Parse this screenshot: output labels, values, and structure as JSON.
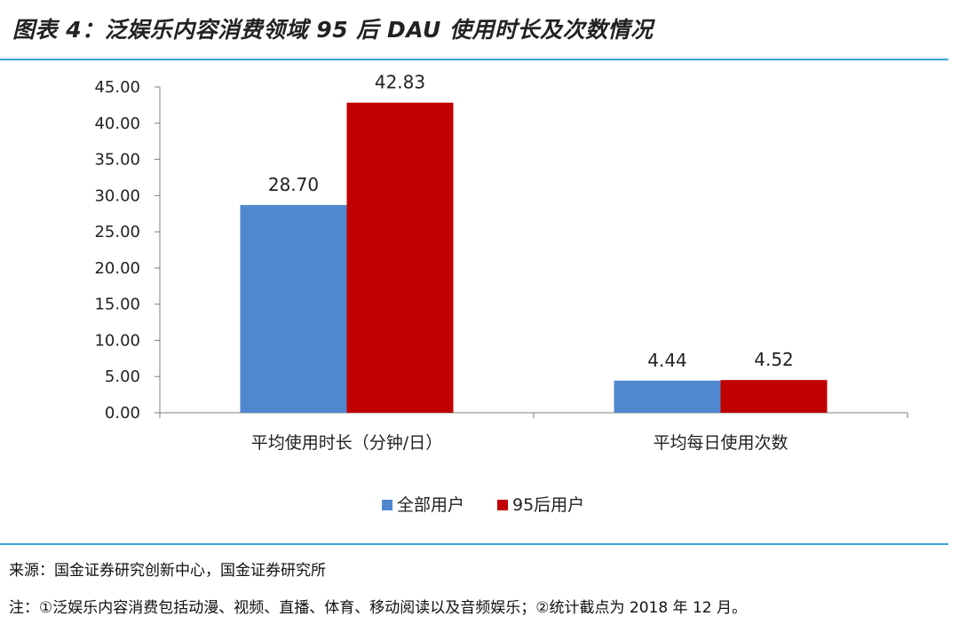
{
  "header": {
    "title": "图表 4：泛娱乐内容消费领域 95 后 DAU 使用时长及次数情况"
  },
  "chart_data": {
    "type": "bar",
    "categories": [
      "平均使用时长（分钟/日）",
      "平均每日使用次数"
    ],
    "series": [
      {
        "name": "全部用户",
        "values": [
          28.7,
          4.44
        ],
        "labels": [
          "28.70",
          "4.44"
        ],
        "color": "#4f88cf"
      },
      {
        "name": "95后用户",
        "values": [
          42.83,
          4.52
        ],
        "labels": [
          "42.83",
          "4.52"
        ],
        "color": "#c00000"
      }
    ],
    "ylim": [
      0,
      45
    ],
    "yticks": [
      "0.00",
      "5.00",
      "10.00",
      "15.00",
      "20.00",
      "25.00",
      "30.00",
      "35.00",
      "40.00",
      "45.00"
    ],
    "grid": false,
    "legend": "bottom-center"
  },
  "footer": {
    "source": "来源：国金证券研究创新中心，国金证券研究所",
    "note": "注：①泛娱乐内容消费包括动漫、视频、直播、体育、移动阅读以及音频娱乐；②统计截点为 2018 年 12 月。"
  },
  "colors": {
    "accent_rule": "#3aa5d6"
  }
}
